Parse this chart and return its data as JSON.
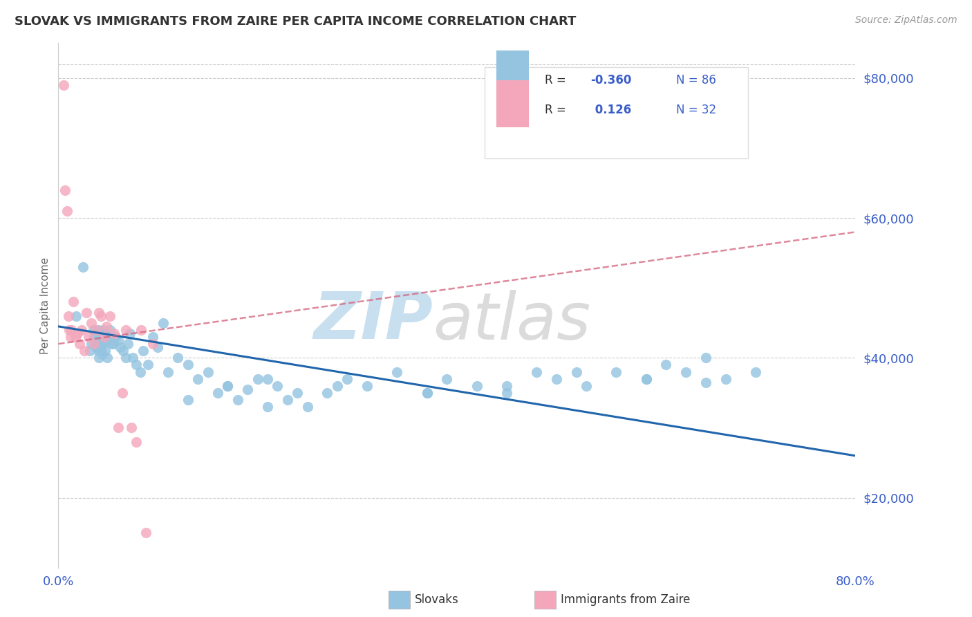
{
  "title": "SLOVAK VS IMMIGRANTS FROM ZAIRE PER CAPITA INCOME CORRELATION CHART",
  "source_text": "Source: ZipAtlas.com",
  "ylabel": "Per Capita Income",
  "x_min": 0.0,
  "x_max": 0.8,
  "y_min": 10000,
  "y_max": 85000,
  "y_ticks": [
    20000,
    40000,
    60000,
    80000
  ],
  "y_tick_labels": [
    "$20,000",
    "$40,000",
    "$60,000",
    "$80,000"
  ],
  "grid_color": "#cccccc",
  "blue_color": "#94c4e0",
  "pink_color": "#f4a7bb",
  "blue_line_color": "#2166ac",
  "pink_line_color": "#d4607a",
  "tick_label_color": "#3a5ec9",
  "title_color": "#333333",
  "axis_label_color": "#666666",
  "watermark_zip_color": "#c8dff0",
  "watermark_atlas_color": "#b0b0b0",
  "blue_scatter_x": [
    0.018,
    0.025,
    0.032,
    0.033,
    0.035,
    0.036,
    0.037,
    0.038,
    0.038,
    0.039,
    0.04,
    0.04,
    0.041,
    0.041,
    0.042,
    0.042,
    0.043,
    0.044,
    0.045,
    0.045,
    0.046,
    0.047,
    0.048,
    0.049,
    0.05,
    0.051,
    0.052,
    0.053,
    0.055,
    0.057,
    0.06,
    0.062,
    0.065,
    0.068,
    0.07,
    0.072,
    0.075,
    0.078,
    0.082,
    0.085,
    0.09,
    0.095,
    0.1,
    0.105,
    0.11,
    0.12,
    0.13,
    0.14,
    0.15,
    0.16,
    0.17,
    0.18,
    0.19,
    0.2,
    0.21,
    0.22,
    0.23,
    0.24,
    0.25,
    0.27,
    0.29,
    0.31,
    0.34,
    0.37,
    0.39,
    0.42,
    0.45,
    0.48,
    0.5,
    0.53,
    0.56,
    0.59,
    0.61,
    0.63,
    0.65,
    0.67,
    0.7,
    0.65,
    0.59,
    0.52,
    0.45,
    0.37,
    0.28,
    0.21,
    0.17,
    0.13
  ],
  "blue_scatter_y": [
    46000,
    53000,
    41000,
    42000,
    44000,
    43000,
    42000,
    41500,
    43000,
    42000,
    44000,
    41000,
    41500,
    40000,
    43000,
    42000,
    41000,
    40500,
    44000,
    42000,
    43500,
    41000,
    42500,
    40000,
    43000,
    43000,
    44000,
    42000,
    42000,
    43000,
    42500,
    41500,
    41000,
    40000,
    42000,
    43500,
    40000,
    39000,
    38000,
    41000,
    39000,
    43000,
    41500,
    45000,
    38000,
    40000,
    39000,
    37000,
    38000,
    35000,
    36000,
    34000,
    35500,
    37000,
    33000,
    36000,
    34000,
    35000,
    33000,
    35000,
    37000,
    36000,
    38000,
    35000,
    37000,
    36000,
    35000,
    38000,
    37000,
    36000,
    38000,
    37000,
    39000,
    38000,
    40000,
    37000,
    38000,
    36500,
    37000,
    38000,
    36000,
    35000,
    36000,
    37000,
    36000,
    34000
  ],
  "pink_scatter_x": [
    0.005,
    0.007,
    0.009,
    0.01,
    0.011,
    0.012,
    0.013,
    0.015,
    0.017,
    0.019,
    0.021,
    0.023,
    0.026,
    0.028,
    0.03,
    0.033,
    0.036,
    0.038,
    0.041,
    0.043,
    0.046,
    0.048,
    0.052,
    0.056,
    0.06,
    0.064,
    0.068,
    0.073,
    0.078,
    0.083,
    0.088,
    0.095
  ],
  "pink_scatter_y": [
    79000,
    64000,
    61000,
    46000,
    44000,
    43000,
    44000,
    48000,
    43000,
    43500,
    42000,
    44000,
    41000,
    46500,
    43000,
    45000,
    42000,
    44000,
    46500,
    46000,
    43000,
    44500,
    46000,
    43500,
    30000,
    35000,
    44000,
    30000,
    28000,
    44000,
    15000,
    42000
  ],
  "blue_trend_x": [
    0.0,
    0.8
  ],
  "blue_trend_y": [
    44500,
    26000
  ],
  "pink_trend_x": [
    0.0,
    0.8
  ],
  "pink_trend_y": [
    42000,
    58000
  ],
  "legend_items": [
    {
      "color": "#94c4e0",
      "r_label": "R = ",
      "r_val": "-0.360",
      "n_label": "N = 86"
    },
    {
      "color": "#f4a7bb",
      "r_label": "R = ",
      "r_val": " 0.126",
      "n_label": "N = 32"
    }
  ],
  "bottom_legend": [
    {
      "color": "#94c4e0",
      "label": "Slovaks"
    },
    {
      "color": "#f4a7bb",
      "label": "Immigrants from Zaire"
    }
  ]
}
